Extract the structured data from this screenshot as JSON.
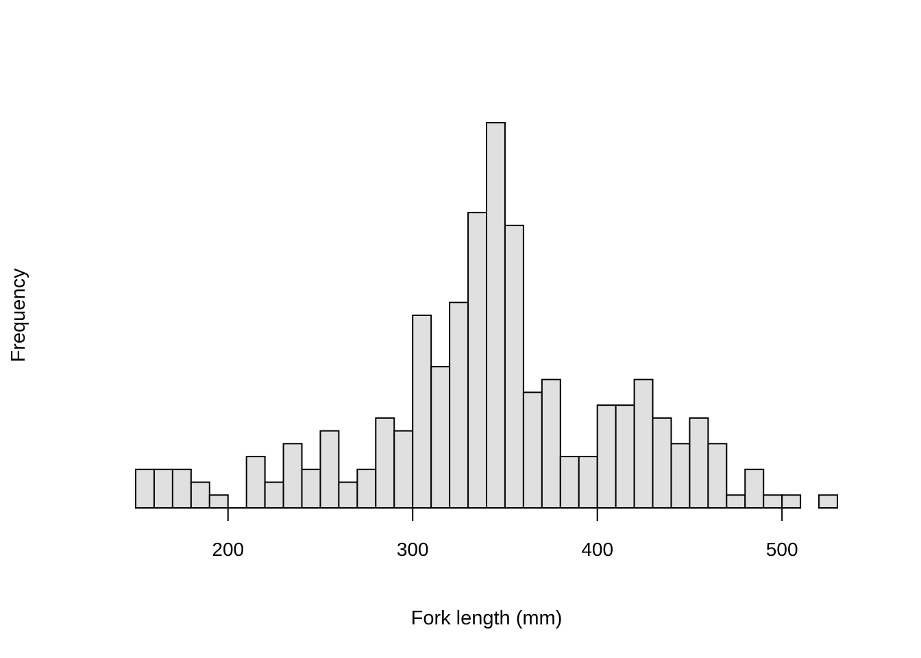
{
  "chart_data": {
    "type": "bar",
    "subtype": "histogram",
    "xlabel": "Fork length (mm)",
    "ylabel": "Frequency",
    "bin_width": 10,
    "bins_start": [
      150,
      160,
      170,
      180,
      190,
      200,
      210,
      220,
      230,
      240,
      250,
      260,
      270,
      280,
      290,
      300,
      310,
      320,
      330,
      340,
      350,
      360,
      370,
      380,
      390,
      400,
      410,
      420,
      430,
      440,
      450,
      460,
      470,
      480,
      490,
      500,
      510,
      520
    ],
    "counts": [
      3,
      3,
      3,
      2,
      1,
      0,
      4,
      2,
      5,
      3,
      6,
      2,
      3,
      7,
      6,
      15,
      11,
      16,
      23,
      30,
      22,
      9,
      10,
      4,
      4,
      8,
      8,
      10,
      7,
      5,
      7,
      5,
      1,
      3,
      1,
      1,
      0,
      1
    ],
    "x_ticks": [
      200,
      300,
      400,
      500
    ],
    "xlim": [
      150,
      530
    ],
    "ylim": [
      0,
      30
    ],
    "y_axis_drawn": false,
    "colors": {
      "bar_fill": "#e0e0e0",
      "bar_stroke": "#000000"
    }
  }
}
